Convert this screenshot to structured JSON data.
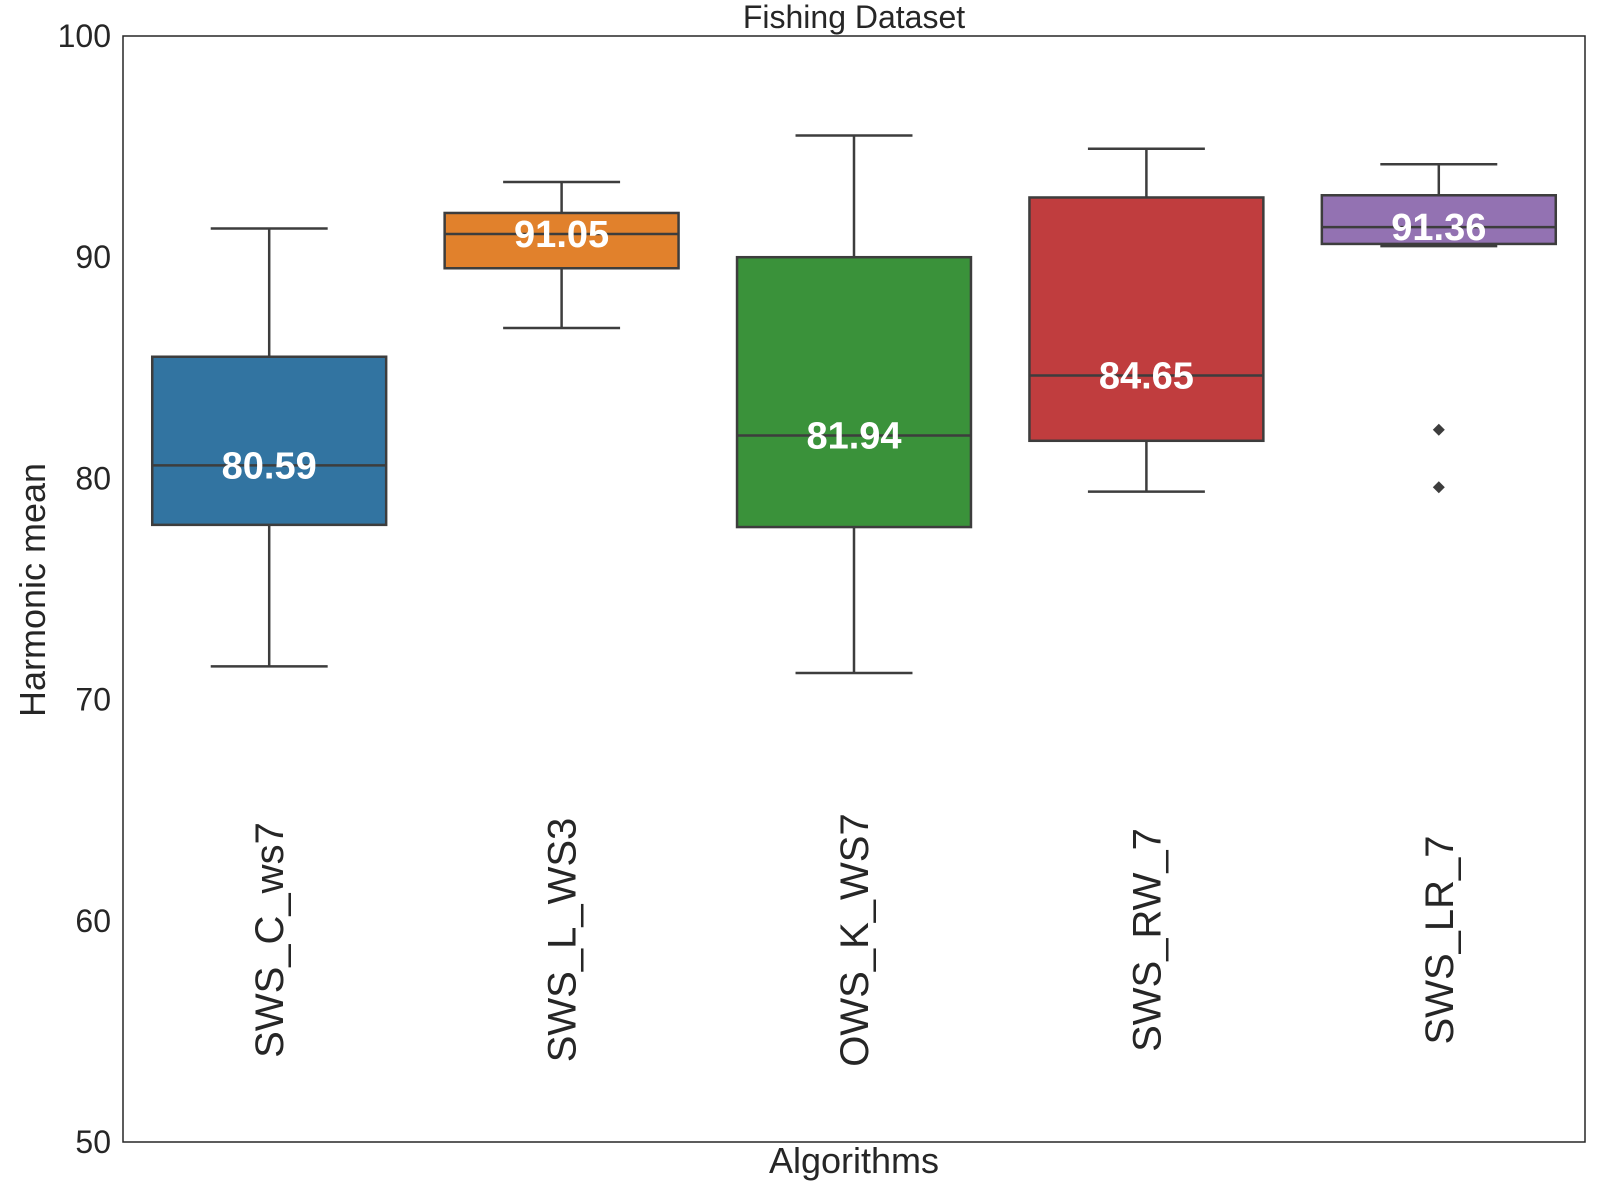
{
  "chart_data": {
    "type": "box",
    "title": "Fishing Dataset",
    "xlabel": "Algorithms",
    "ylabel": "Harmonic mean",
    "ylim": [
      50,
      100
    ],
    "yticks": [
      "50",
      "60",
      "70",
      "80",
      "90",
      "100"
    ],
    "grid": false,
    "categories": [
      "SWS_C_ws7",
      "SWS_L_WS3",
      "OWS_K_WS7",
      "SWS_RW_7",
      "SWS_LR_7"
    ],
    "boxes": [
      {
        "category": "SWS_C_ws7",
        "whisker_low": 71.5,
        "q1": 77.9,
        "median": 80.59,
        "q3": 85.5,
        "whisker_high": 91.3,
        "outliers": [],
        "median_label": "80.59",
        "color": "#3274a1"
      },
      {
        "category": "SWS_L_WS3",
        "whisker_low": 86.8,
        "q1": 89.5,
        "median": 91.05,
        "q3": 92.0,
        "whisker_high": 93.4,
        "outliers": [],
        "median_label": "91.05",
        "color": "#e1812c"
      },
      {
        "category": "OWS_K_WS7",
        "whisker_low": 71.2,
        "q1": 77.8,
        "median": 81.94,
        "q3": 90.0,
        "whisker_high": 95.5,
        "outliers": [],
        "median_label": "81.94",
        "color": "#3a923a"
      },
      {
        "category": "SWS_RW_7",
        "whisker_low": 79.4,
        "q1": 81.7,
        "median": 84.65,
        "q3": 92.7,
        "whisker_high": 94.9,
        "outliers": [],
        "median_label": "84.65",
        "color": "#c03d3e"
      },
      {
        "category": "SWS_LR_7",
        "whisker_low": 90.5,
        "q1": 90.6,
        "median": 91.36,
        "q3": 92.8,
        "whisker_high": 94.2,
        "outliers": [
          82.2,
          79.6
        ],
        "median_label": "91.36",
        "color": "#9372b2"
      }
    ]
  }
}
